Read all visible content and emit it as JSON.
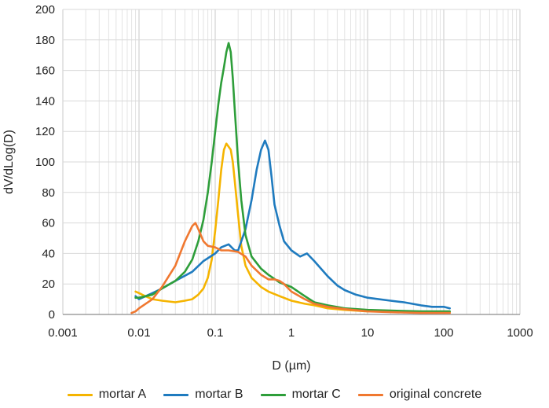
{
  "chart_data": {
    "type": "line",
    "xlabel": "D (µm)",
    "ylabel": "dV/dLog(D)",
    "xscale": "log",
    "xlim": [
      0.001,
      1000
    ],
    "ylim": [
      0,
      200
    ],
    "x_ticks": [
      0.001,
      0.01,
      0.1,
      1,
      10,
      100,
      1000
    ],
    "x_tick_labels": [
      "0.001",
      "0.01",
      "0.1",
      "1",
      "10",
      "100",
      "1000"
    ],
    "y_ticks": [
      0,
      20,
      40,
      60,
      80,
      100,
      120,
      140,
      160,
      180,
      200
    ],
    "y_tick_labels": [
      "0",
      "20",
      "40",
      "60",
      "80",
      "100",
      "120",
      "140",
      "160",
      "180",
      "200"
    ],
    "grid": true,
    "legend_position": "bottom",
    "series": [
      {
        "name": "mortar A",
        "color": "#f5b400",
        "points": [
          [
            0.009,
            15
          ],
          [
            0.01,
            14
          ],
          [
            0.012,
            12
          ],
          [
            0.015,
            10
          ],
          [
            0.02,
            9
          ],
          [
            0.03,
            8
          ],
          [
            0.04,
            9
          ],
          [
            0.05,
            10
          ],
          [
            0.06,
            13
          ],
          [
            0.07,
            17
          ],
          [
            0.08,
            24
          ],
          [
            0.09,
            36
          ],
          [
            0.1,
            55
          ],
          [
            0.11,
            75
          ],
          [
            0.12,
            95
          ],
          [
            0.13,
            108
          ],
          [
            0.14,
            112
          ],
          [
            0.15,
            110
          ],
          [
            0.16,
            108
          ],
          [
            0.17,
            100
          ],
          [
            0.18,
            88
          ],
          [
            0.2,
            65
          ],
          [
            0.22,
            45
          ],
          [
            0.25,
            32
          ],
          [
            0.3,
            24
          ],
          [
            0.4,
            18
          ],
          [
            0.5,
            15
          ],
          [
            0.7,
            12
          ],
          [
            1,
            9
          ],
          [
            1.5,
            7
          ],
          [
            2,
            6
          ],
          [
            3,
            4
          ],
          [
            5,
            3
          ],
          [
            10,
            2
          ],
          [
            20,
            2
          ],
          [
            50,
            1.5
          ],
          [
            100,
            1.5
          ],
          [
            120,
            1.5
          ]
        ]
      },
      {
        "name": "mortar B",
        "color": "#1f7bbf",
        "points": [
          [
            0.009,
            12
          ],
          [
            0.01,
            10
          ],
          [
            0.015,
            14
          ],
          [
            0.02,
            17
          ],
          [
            0.03,
            22
          ],
          [
            0.05,
            28
          ],
          [
            0.07,
            35
          ],
          [
            0.1,
            40
          ],
          [
            0.12,
            44
          ],
          [
            0.15,
            46
          ],
          [
            0.18,
            42
          ],
          [
            0.2,
            42
          ],
          [
            0.25,
            56
          ],
          [
            0.3,
            75
          ],
          [
            0.35,
            95
          ],
          [
            0.4,
            108
          ],
          [
            0.45,
            114
          ],
          [
            0.5,
            108
          ],
          [
            0.55,
            90
          ],
          [
            0.6,
            72
          ],
          [
            0.7,
            58
          ],
          [
            0.8,
            48
          ],
          [
            1,
            42
          ],
          [
            1.3,
            38
          ],
          [
            1.6,
            40
          ],
          [
            2,
            35
          ],
          [
            3,
            25
          ],
          [
            4,
            19
          ],
          [
            5,
            16
          ],
          [
            7,
            13
          ],
          [
            10,
            11
          ],
          [
            20,
            9
          ],
          [
            30,
            8
          ],
          [
            50,
            6
          ],
          [
            70,
            5
          ],
          [
            100,
            5
          ],
          [
            120,
            4
          ]
        ]
      },
      {
        "name": "mortar C",
        "color": "#2e9e3a",
        "points": [
          [
            0.009,
            11
          ],
          [
            0.01,
            11
          ],
          [
            0.015,
            13
          ],
          [
            0.02,
            17
          ],
          [
            0.03,
            22
          ],
          [
            0.04,
            28
          ],
          [
            0.05,
            36
          ],
          [
            0.06,
            48
          ],
          [
            0.07,
            62
          ],
          [
            0.08,
            80
          ],
          [
            0.09,
            100
          ],
          [
            0.1,
            120
          ],
          [
            0.11,
            138
          ],
          [
            0.12,
            152
          ],
          [
            0.13,
            162
          ],
          [
            0.14,
            172
          ],
          [
            0.15,
            178
          ],
          [
            0.16,
            172
          ],
          [
            0.17,
            155
          ],
          [
            0.18,
            135
          ],
          [
            0.2,
            100
          ],
          [
            0.22,
            75
          ],
          [
            0.25,
            52
          ],
          [
            0.3,
            38
          ],
          [
            0.4,
            30
          ],
          [
            0.5,
            26
          ],
          [
            0.7,
            21
          ],
          [
            1,
            18
          ],
          [
            1.5,
            12
          ],
          [
            2,
            8
          ],
          [
            3,
            6
          ],
          [
            5,
            4
          ],
          [
            10,
            3
          ],
          [
            20,
            2.5
          ],
          [
            50,
            2
          ],
          [
            100,
            2
          ],
          [
            120,
            2
          ]
        ]
      },
      {
        "name": "original concrete",
        "color": "#f07830",
        "points": [
          [
            0.008,
            1
          ],
          [
            0.009,
            2
          ],
          [
            0.01,
            4
          ],
          [
            0.015,
            10
          ],
          [
            0.02,
            18
          ],
          [
            0.03,
            32
          ],
          [
            0.04,
            48
          ],
          [
            0.05,
            58
          ],
          [
            0.055,
            60
          ],
          [
            0.06,
            56
          ],
          [
            0.07,
            48
          ],
          [
            0.08,
            45
          ],
          [
            0.1,
            44
          ],
          [
            0.12,
            42
          ],
          [
            0.15,
            42
          ],
          [
            0.2,
            41
          ],
          [
            0.25,
            38
          ],
          [
            0.3,
            32
          ],
          [
            0.4,
            26
          ],
          [
            0.5,
            23
          ],
          [
            0.6,
            23
          ],
          [
            0.7,
            22
          ],
          [
            0.8,
            20
          ],
          [
            1,
            15
          ],
          [
            1.5,
            10
          ],
          [
            2,
            7
          ],
          [
            3,
            5
          ],
          [
            5,
            3.5
          ],
          [
            10,
            2
          ],
          [
            20,
            1.5
          ],
          [
            50,
            1
          ],
          [
            100,
            1
          ],
          [
            120,
            1
          ]
        ]
      }
    ]
  }
}
